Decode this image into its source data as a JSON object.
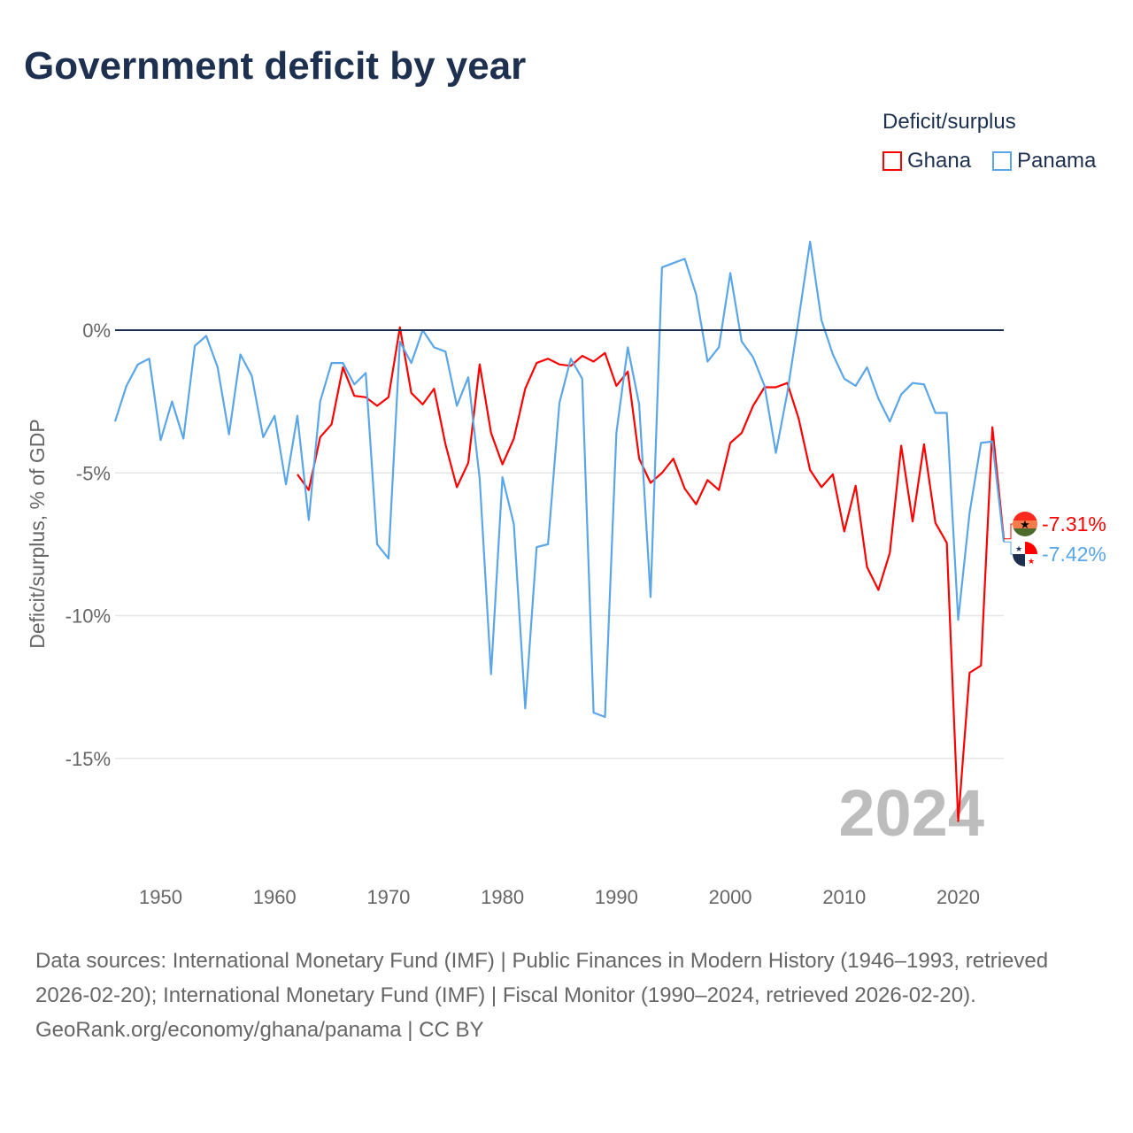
{
  "chart_data": {
    "type": "line",
    "title": "Government deficit by year",
    "xlabel": "",
    "ylabel": "Deficit/surplus, % of GDP",
    "xlim": [
      1946,
      2024
    ],
    "ylim": [
      -18.5,
      4
    ],
    "grid": true,
    "yticks": [
      0,
      -5,
      -10,
      -15
    ],
    "ytick_labels": [
      "0%",
      "-5%",
      "-10%",
      "-15%"
    ],
    "xticks": [
      1950,
      1960,
      1970,
      1980,
      1990,
      2000,
      2010,
      2020
    ],
    "xtick_labels": [
      "1950",
      "1960",
      "1970",
      "1980",
      "1990",
      "2000",
      "2010",
      "2020"
    ],
    "legend": {
      "title": "Deficit/surplus",
      "placement": "top-right"
    },
    "watermark_year": "2024",
    "series": [
      {
        "name": "Ghana",
        "color": "#ff0000",
        "end_label": "-7.31%",
        "start_year": 1962,
        "values": [
          -5.05,
          -5.6,
          -3.75,
          -3.3,
          -1.3,
          -2.3,
          -2.35,
          -2.65,
          -2.35,
          0.1,
          -2.2,
          -2.6,
          -2.05,
          -4.0,
          -5.5,
          -4.65,
          -1.2,
          -3.6,
          -4.7,
          -3.8,
          -2.05,
          -1.15,
          -1.0,
          -1.2,
          -1.25,
          -0.9,
          -1.1,
          -0.8,
          -1.95,
          -1.45,
          -4.5,
          -5.35,
          -5.0,
          -4.5,
          -5.55,
          -6.1,
          -5.25,
          -5.6,
          -3.95,
          -3.6,
          -2.65,
          -2.0,
          -2.0,
          -1.85,
          -3.1,
          -4.9,
          -5.5,
          -5.05,
          -7.05,
          -5.45,
          -8.3,
          -9.1,
          -7.8,
          -4.05,
          -6.7,
          -4.0,
          -6.75,
          -7.45,
          -17.2,
          -12.0,
          -11.75,
          -3.4,
          -7.31
        ]
      },
      {
        "name": "Panama",
        "color": "#5aa6e8",
        "end_label": "-7.42%",
        "start_year": 1946,
        "values": [
          -3.2,
          -1.95,
          -1.2,
          -1.0,
          -3.85,
          -2.5,
          -3.8,
          -0.55,
          -0.2,
          -1.3,
          -3.65,
          -0.85,
          -1.6,
          -3.75,
          -3.0,
          -5.4,
          -3.0,
          -6.65,
          -2.5,
          -1.15,
          -1.15,
          -1.9,
          -1.5,
          -7.5,
          -8.0,
          -0.4,
          -1.15,
          0.0,
          -0.6,
          -0.75,
          -2.65,
          -1.65,
          -5.2,
          -12.05,
          -5.15,
          -6.8,
          -13.25,
          -7.6,
          -7.5,
          -2.55,
          -1.0,
          -1.7,
          -13.4,
          -13.55,
          -3.6,
          -0.6,
          -2.6,
          -9.35,
          2.2,
          2.35,
          2.5,
          1.25,
          -1.1,
          -0.6,
          2.0,
          -0.4,
          -0.95,
          -1.95,
          -4.3,
          -2.2,
          0.4,
          3.1,
          0.35,
          -0.85,
          -1.7,
          -1.95,
          -1.3,
          -2.4,
          -3.2,
          -2.25,
          -1.85,
          -1.9,
          -2.9,
          -2.9,
          -10.15,
          -6.4,
          -3.95,
          -3.9,
          -7.42
        ]
      }
    ]
  },
  "footer": {
    "sources": "Data sources: International Monetary Fund (IMF) | Public Finances in Modern History (1946–1993, retrieved 2026-02-20); International Monetary Fund (IMF) | Fiscal Monitor (1990–2024, retrieved 2026-02-20).",
    "credit": "GeoRank.org/economy/ghana/panama | CC BY"
  }
}
